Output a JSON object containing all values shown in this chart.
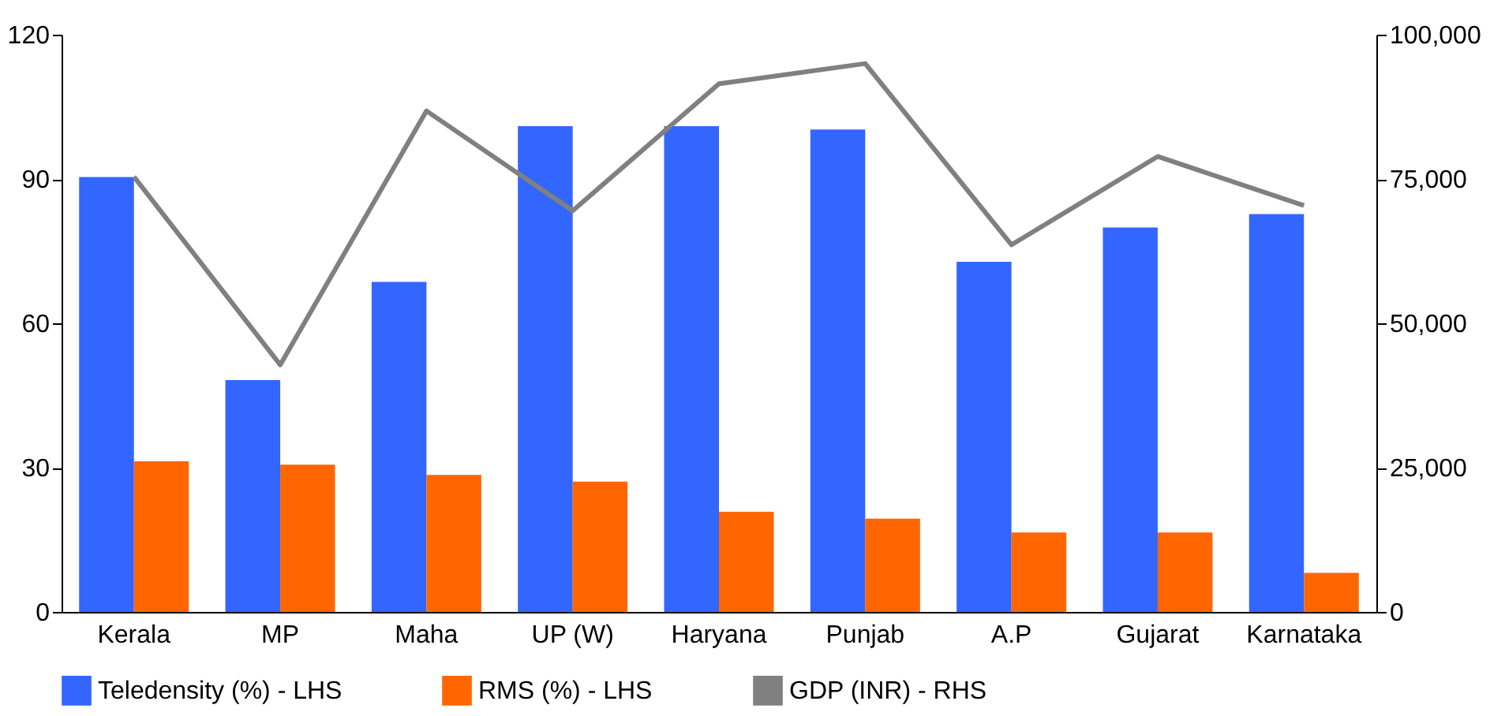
{
  "chart_data": {
    "type": "bar",
    "categories": [
      "Kerala",
      "MP",
      "Maha",
      "UP (W)",
      "Haryana",
      "Punjab",
      "A.P",
      "Gujarat",
      "Karnataka"
    ],
    "series": [
      {
        "name": "Teledensity (%) - LHS",
        "color": "#3366ff",
        "values": [
          90.4,
          48.2,
          68.6,
          101,
          101,
          100.3,
          72.8,
          79.9,
          82.7
        ]
      },
      {
        "name": "RMS (%) - LHS",
        "color": "#ff6600",
        "values": [
          31.3,
          30.6,
          28.5,
          27.1,
          20.8,
          19.4,
          16.5,
          16.5,
          8.1
        ]
      },
      {
        "name": "GDP (INR) - RHS",
        "color": "#808080",
        "type": "line",
        "axis": "y2",
        "values": [
          75400,
          42800,
          86800,
          69500,
          91500,
          95000,
          63600,
          78900,
          70400
        ]
      }
    ],
    "ylim": [
      0,
      120
    ],
    "yticks": [
      0,
      30,
      60,
      90,
      120
    ],
    "y2lim": [
      0,
      100000
    ],
    "y2ticks": [
      {
        "value": 0,
        "label": "0"
      },
      {
        "value": 25000,
        "label": "25,000"
      },
      {
        "value": 50000,
        "label": "50,000"
      },
      {
        "value": 75000,
        "label": "75,000"
      },
      {
        "value": 100000,
        "label": "100,000"
      }
    ],
    "grid": false,
    "legend": "bottom",
    "marker": "none",
    "line_style": "solid"
  }
}
